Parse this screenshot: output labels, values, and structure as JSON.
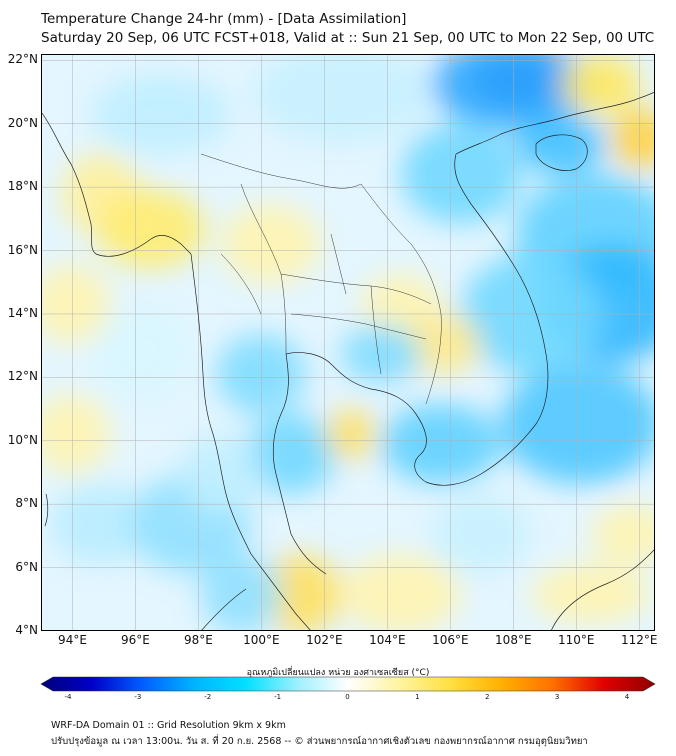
{
  "title": {
    "line1": "Temperature Change 24-hr (mm) - [Data Assimilation]",
    "line2": "Saturday 20 Sep, 06 UTC FCST+018, Valid at :: Sun 21 Sep, 00 UTC to Mon 22 Sep, 00 UTC"
  },
  "map": {
    "lat_ticks": [
      "22°N",
      "20°N",
      "18°N",
      "16°N",
      "14°N",
      "12°N",
      "10°N",
      "8°N",
      "6°N",
      "4°N"
    ],
    "lon_ticks": [
      "94°E",
      "96°E",
      "98°E",
      "100°E",
      "102°E",
      "104°E",
      "106°E",
      "108°E",
      "110°E",
      "112°E"
    ],
    "extent": {
      "lon_min": 93,
      "lon_max": 112.5,
      "lat_min": 4,
      "lat_max": 22.2
    }
  },
  "colorbar": {
    "title": "อุณหภูมิเปลี่ยนแปลง หน่วย องศาเซลเซียส (°C)",
    "ticks": [
      "-4",
      "-3",
      "-2",
      "-1",
      "0",
      "1",
      "2",
      "3",
      "4"
    ],
    "range": [
      -4,
      4
    ],
    "colors": [
      "#00007a",
      "#0000c8",
      "#0060ff",
      "#00b4ff",
      "#00e0ff",
      "#9cf0ff",
      "#ffffff",
      "#fff4a0",
      "#ffe040",
      "#ffb000",
      "#ff7000",
      "#e00000",
      "#900000"
    ]
  },
  "footer": {
    "line1": "WRF-DA Domain 01 :: Grid Resolution 9km x 9km",
    "line2": "ปรับปรุงข้อมูล ณ เวลา 13:00น. วัน ส. ที่ 20 ก.ย. 2568 -- © ส่วนพยากรณ์อากาศเชิงตัวเลข กองพยากรณ์อากาศ กรมอุตุนิยมวิทยา"
  }
}
